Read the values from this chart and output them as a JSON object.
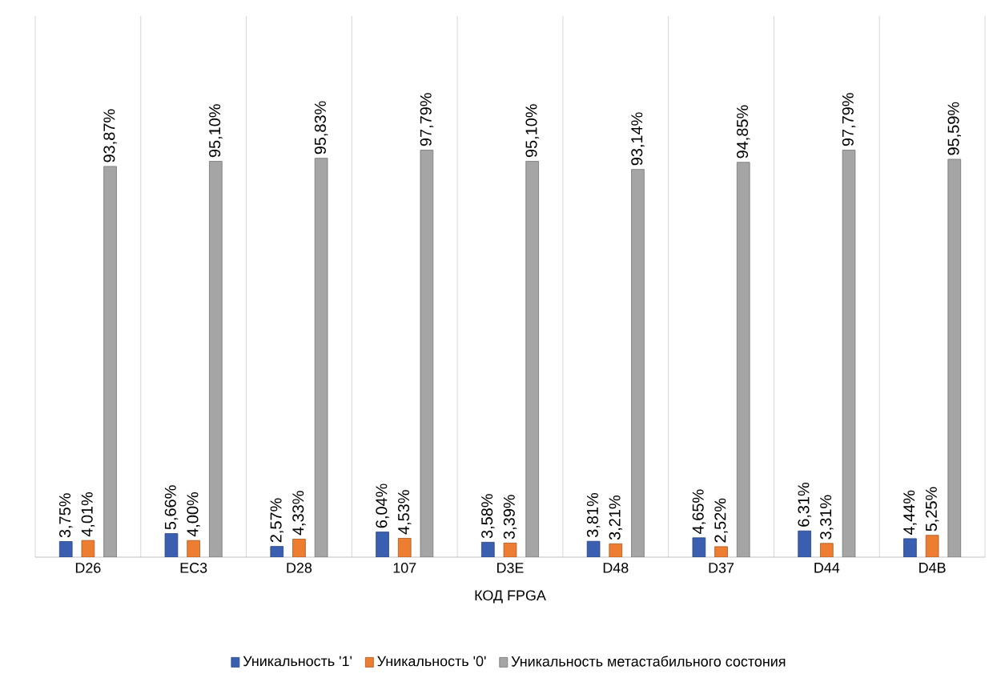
{
  "chart_data": {
    "type": "bar",
    "xlabel": "КОД FPGA",
    "categories": [
      "D26",
      "EC3",
      "D28",
      "107",
      "D3E",
      "D48",
      "D37",
      "D44",
      "D4B"
    ],
    "series": [
      {
        "name": "Уникальность '1'",
        "color": "#3a5fb0",
        "values": [
          3.75,
          5.66,
          2.57,
          6.04,
          3.58,
          3.81,
          4.65,
          6.31,
          4.44
        ],
        "value_labels": [
          "3,75%",
          "5,66%",
          "2,57%",
          "6,04%",
          "3,58%",
          "3,81%",
          "4,65%",
          "6,31%",
          "4,44%"
        ]
      },
      {
        "name": "Уникальность '0'",
        "color": "#ed7d31",
        "values": [
          4.01,
          4.0,
          4.33,
          4.53,
          3.39,
          3.21,
          2.52,
          3.31,
          5.25
        ],
        "value_labels": [
          "4,01%",
          "4,00%",
          "4,33%",
          "4,53%",
          "3,39%",
          "3,21%",
          "2,52%",
          "3,31%",
          "5,25%"
        ]
      },
      {
        "name": "Уникальность метастабильного состония",
        "color": "#a5a5a5",
        "values": [
          93.87,
          95.1,
          95.83,
          97.79,
          95.1,
          93.14,
          94.85,
          97.79,
          95.59
        ],
        "value_labels": [
          "93,87%",
          "95,10%",
          "95,83%",
          "97,79%",
          "95,10%",
          "93,14%",
          "94,85%",
          "97,79%",
          "95,59%"
        ]
      }
    ],
    "ylim": [
      0,
      130
    ],
    "grid": "x",
    "legend": "bottom",
    "tick_labels": "x"
  }
}
